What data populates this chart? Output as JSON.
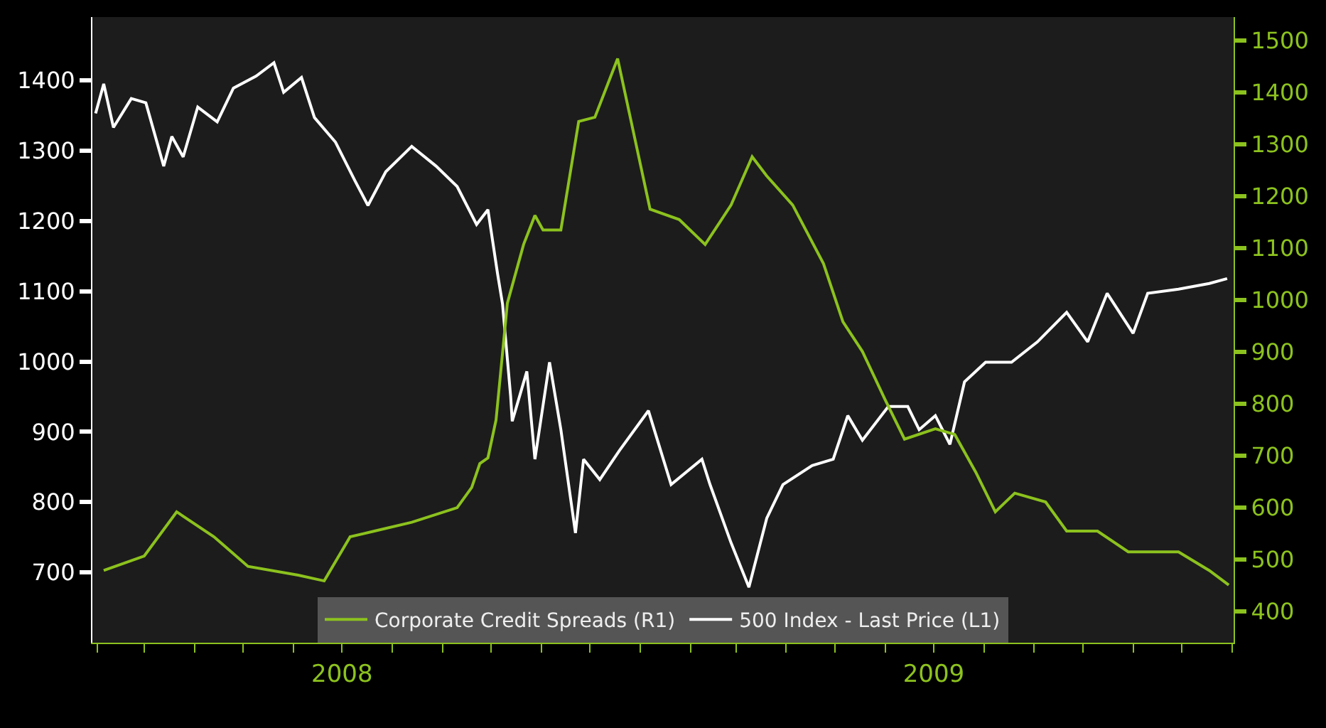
{
  "chart_data": {
    "type": "line",
    "series": [
      {
        "name": "Corporate Credit Spreads (R1)",
        "color": "#8cc21e",
        "axis": "y2",
        "x": [
          "2008-02-05",
          "2008-03-01",
          "2008-03-21",
          "2008-04-13",
          "2008-05-04",
          "2008-06-04",
          "2008-06-20",
          "2008-07-06",
          "2008-07-21",
          "2008-08-13",
          "2008-09-10",
          "2008-09-19",
          "2008-09-24",
          "2008-09-29",
          "2008-10-04",
          "2008-10-11",
          "2008-10-21",
          "2008-10-28",
          "2008-11-02",
          "2008-11-13",
          "2008-11-24",
          "2008-12-04",
          "2008-12-18",
          "2009-01-07",
          "2009-01-25",
          "2009-02-10",
          "2009-02-26",
          "2009-03-11",
          "2009-03-20",
          "2009-04-05",
          "2009-04-24",
          "2009-05-06",
          "2009-05-18",
          "2009-06-01",
          "2009-06-13",
          "2009-07-02",
          "2009-07-14",
          "2009-07-27",
          "2009-08-08",
          "2009-08-20",
          "2009-09-08",
          "2009-09-21",
          "2009-10-10",
          "2009-10-29",
          "2009-11-29",
          "2009-12-18",
          "2009-12-30"
        ],
        "values": [
          479,
          507,
          592,
          544,
          487,
          470,
          459,
          544,
          555,
          572,
          600,
          639,
          685,
          696,
          769,
          994,
          1107,
          1163,
          1135,
          1135,
          1344,
          1352,
          1465,
          1175,
          1155,
          1107,
          1183,
          1276,
          1239,
          1183,
          1070,
          958,
          901,
          808,
          732,
          752,
          741,
          668,
          592,
          628,
          611,
          555,
          555,
          515,
          515,
          479,
          451
        ]
      },
      {
        "name": "500 Index - Last Price (L1)",
        "color": "#ffffff",
        "x": [
          "2008-01-31",
          "2008-02-05",
          "2008-02-11",
          "2008-02-22",
          "2008-03-02",
          "2008-03-13",
          "2008-03-18",
          "2008-03-25",
          "2008-04-03",
          "2008-04-15",
          "2008-04-25",
          "2008-05-09",
          "2008-05-20",
          "2008-05-26",
          "2008-06-06",
          "2008-06-14",
          "2008-06-27",
          "2008-07-09",
          "2008-07-17",
          "2008-07-28",
          "2008-08-13",
          "2008-08-28",
          "2008-09-10",
          "2008-09-22",
          "2008-09-29",
          "2008-10-05",
          "2008-10-08",
          "2008-10-13",
          "2008-10-14",
          "2008-10-23",
          "2008-10-28",
          "2008-11-06",
          "2008-11-13",
          "2008-11-22",
          "2008-11-27",
          "2008-12-07",
          "2008-12-19",
          "2009-01-06",
          "2009-01-20",
          "2009-02-08",
          "2009-02-13",
          "2009-02-26",
          "2009-03-09",
          "2009-03-20",
          "2009-03-30",
          "2009-04-17",
          "2009-04-30",
          "2009-05-09",
          "2009-05-18",
          "2009-06-03",
          "2009-06-15",
          "2009-06-22",
          "2009-07-02",
          "2009-07-11",
          "2009-07-20",
          "2009-08-02",
          "2009-08-18",
          "2009-09-03",
          "2009-09-21",
          "2009-10-04",
          "2009-10-16",
          "2009-11-01",
          "2009-11-10",
          "2009-11-29",
          "2009-12-18",
          "2009-12-29"
        ],
        "values": [
          1353,
          1395,
          1333,
          1374,
          1368,
          1278,
          1320,
          1291,
          1362,
          1341,
          1389,
          1406,
          1425,
          1383,
          1404,
          1347,
          1312,
          1257,
          1222,
          1270,
          1306,
          1278,
          1249,
          1195,
          1216,
          1124,
          1082,
          951,
          915,
          986,
          861,
          999,
          903,
          756,
          861,
          832,
          873,
          930,
          825,
          861,
          825,
          742,
          679,
          777,
          825,
          852,
          861,
          923,
          888,
          936,
          936,
          903,
          923,
          882,
          971,
          999,
          999,
          1028,
          1070,
          1028,
          1097,
          1040,
          1097,
          1103,
          1111,
          1118
        ]
      }
    ],
    "xlim": [
      "2008-01-29",
      "2010-01-02"
    ],
    "xticks": [
      {
        "value": "2008-02-01",
        "label": null
      },
      {
        "value": "2008-03-01",
        "label": null
      },
      {
        "value": "2008-04-01",
        "label": null
      },
      {
        "value": "2008-05-01",
        "label": null
      },
      {
        "value": "2008-06-01",
        "label": null
      },
      {
        "value": "2008-07-01",
        "label": "2008"
      },
      {
        "value": "2008-08-01",
        "label": null
      },
      {
        "value": "2008-09-01",
        "label": null
      },
      {
        "value": "2008-10-01",
        "label": null
      },
      {
        "value": "2008-11-01",
        "label": null
      },
      {
        "value": "2008-12-01",
        "label": null
      },
      {
        "value": "2009-01-01",
        "label": null
      },
      {
        "value": "2009-02-01",
        "label": null
      },
      {
        "value": "2009-03-01",
        "label": null
      },
      {
        "value": "2009-04-01",
        "label": null
      },
      {
        "value": "2009-05-01",
        "label": null
      },
      {
        "value": "2009-06-01",
        "label": null
      },
      {
        "value": "2009-07-01",
        "label": "2009"
      },
      {
        "value": "2009-08-01",
        "label": null
      },
      {
        "value": "2009-09-01",
        "label": null
      },
      {
        "value": "2009-10-01",
        "label": null
      },
      {
        "value": "2009-11-01",
        "label": null
      },
      {
        "value": "2009-12-01",
        "label": null
      },
      {
        "value": "2010-01-01",
        "label": null
      }
    ],
    "ylim": [
      600,
      1490
    ],
    "yticks": [
      700,
      800,
      900,
      1000,
      1100,
      1200,
      1300,
      1400
    ],
    "y2lim": [
      340,
      1545
    ],
    "y2ticks": [
      400,
      500,
      600,
      700,
      800,
      900,
      1000,
      1100,
      1200,
      1300,
      1400,
      1500
    ],
    "grid": false,
    "legend": "bottom",
    "marker": "none",
    "line_style": "solid"
  }
}
